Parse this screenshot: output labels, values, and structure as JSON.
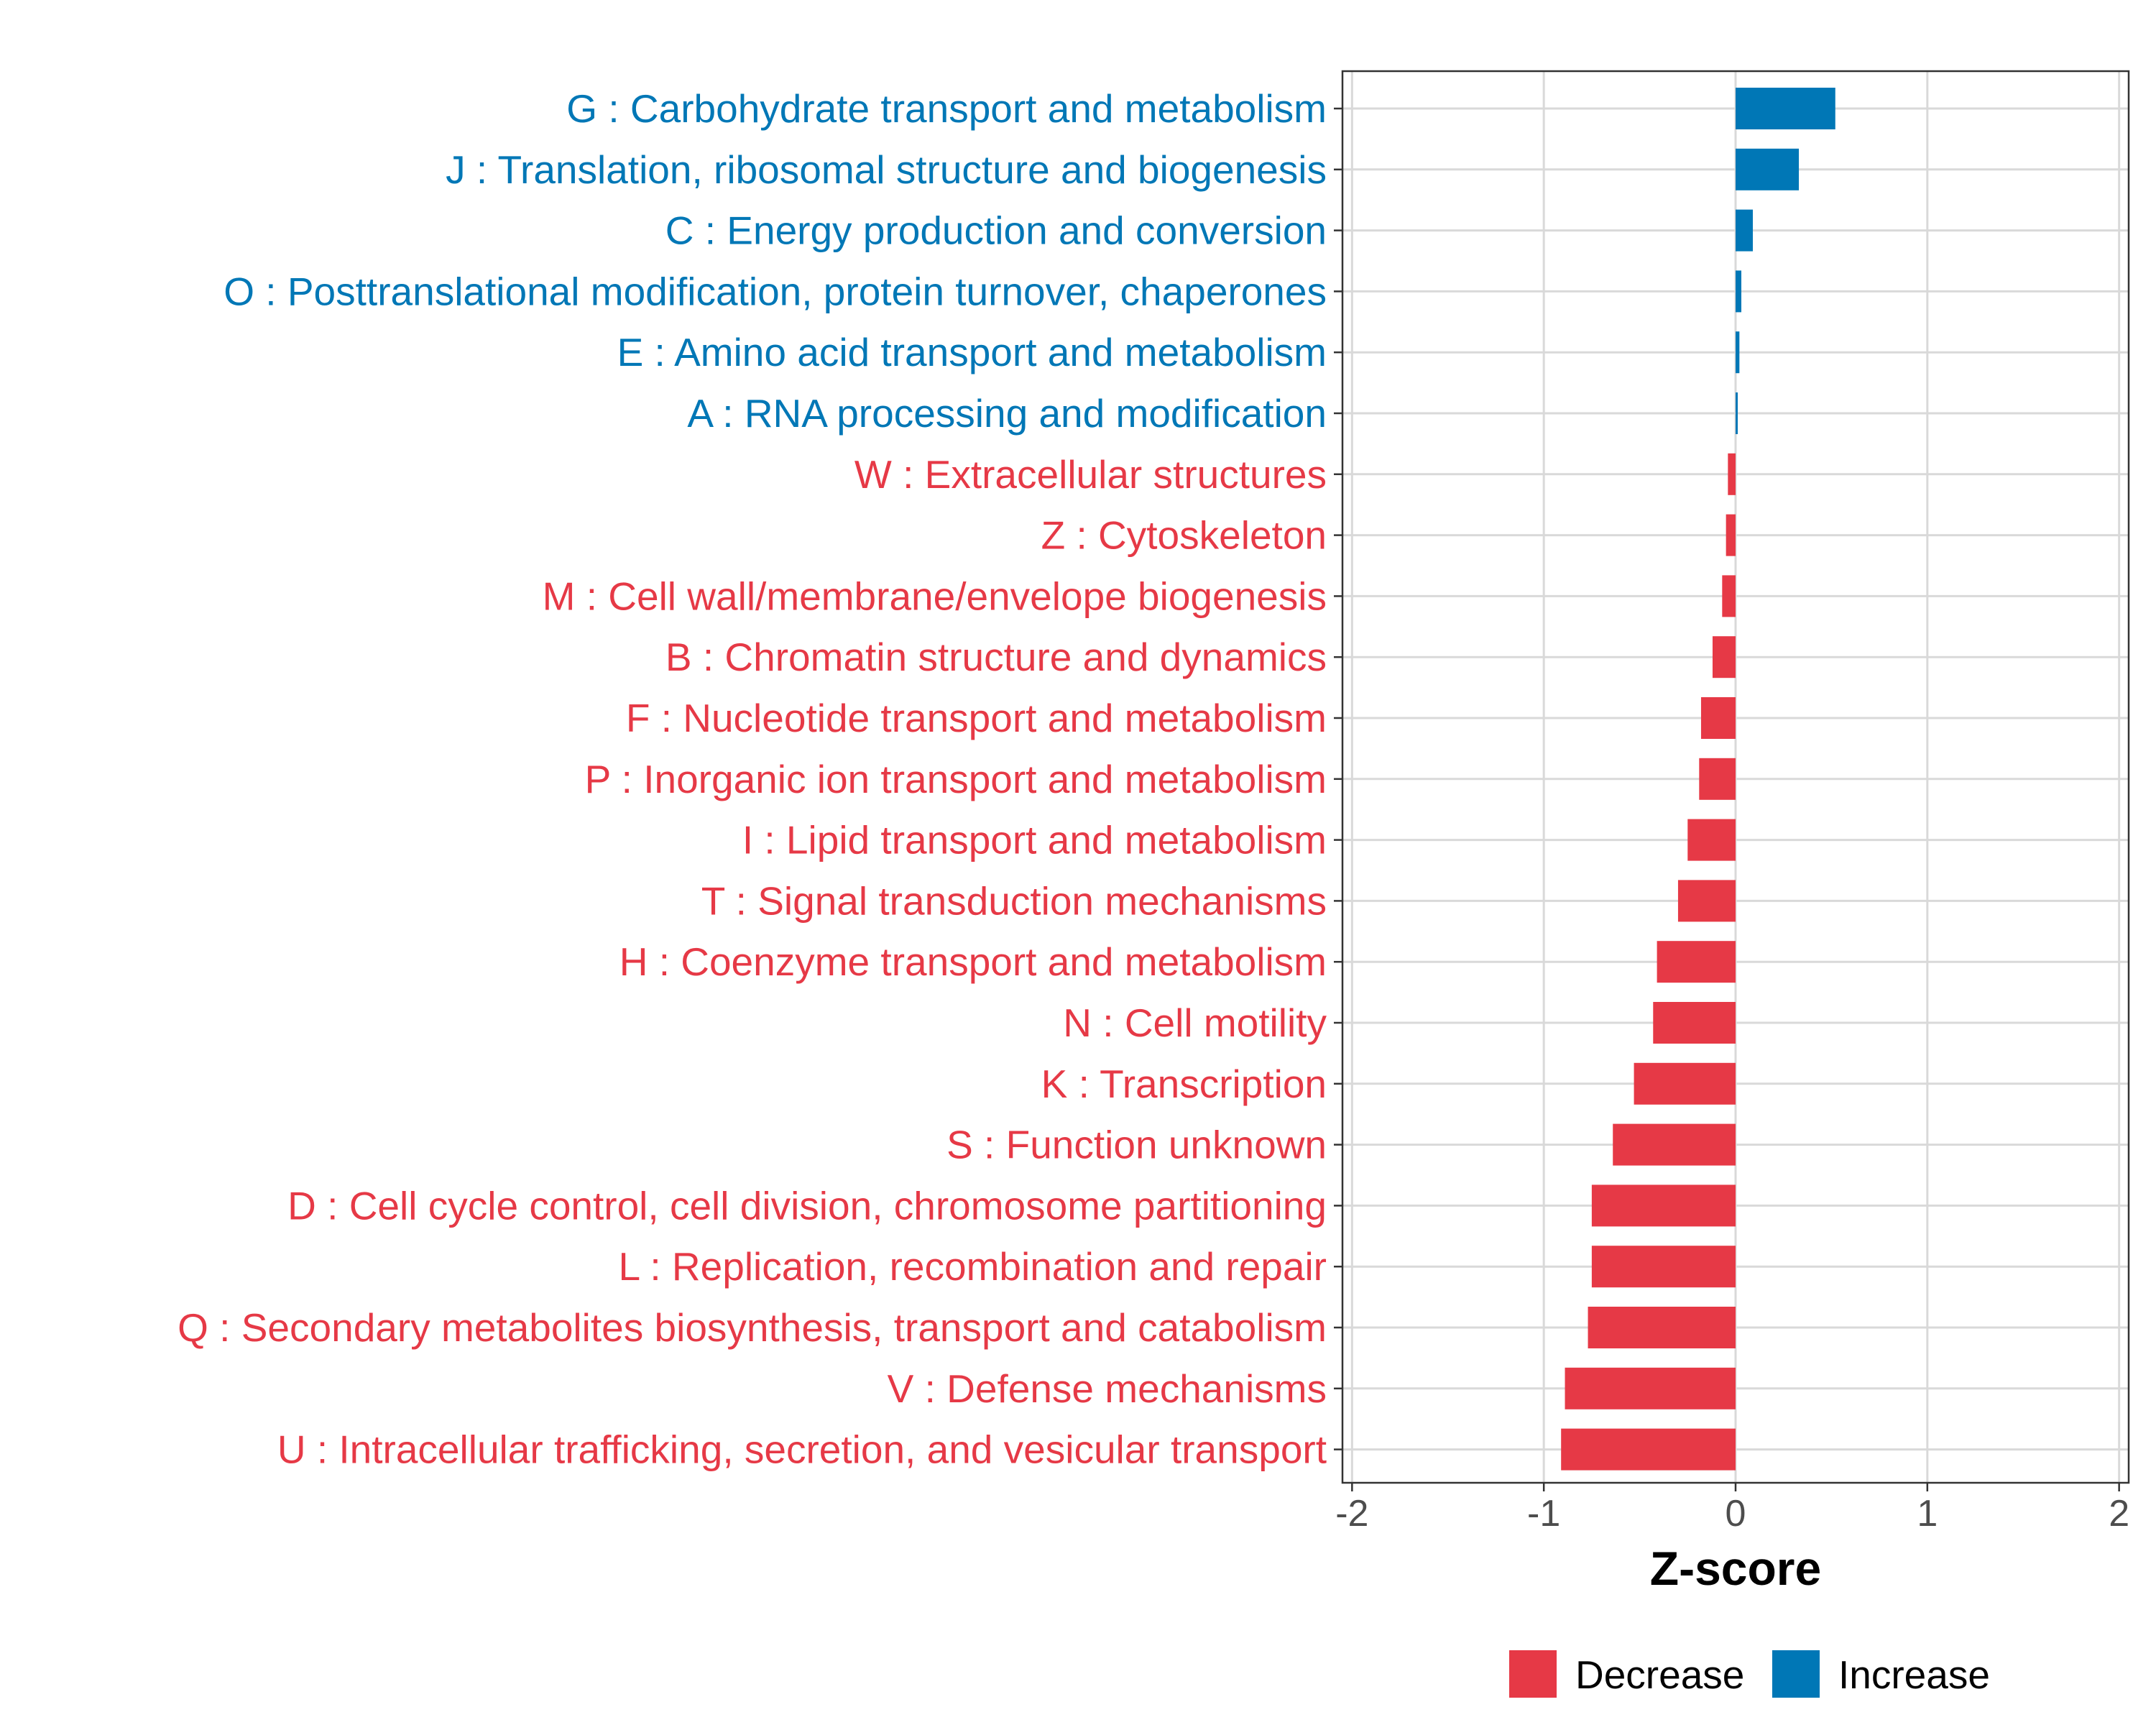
{
  "chart_data": {
    "type": "bar",
    "orientation": "horizontal",
    "xlabel": "Z-score",
    "xlim": [
      -2,
      2
    ],
    "x_ticks": [
      "-2",
      "-1",
      "0",
      "1",
      "2"
    ],
    "x_tick_values": [
      -2,
      -1,
      0,
      1,
      2
    ],
    "grid": true,
    "legend_position": "bottom",
    "legend": [
      {
        "label": "Decrease",
        "color": "#e63946"
      },
      {
        "label": "Increase",
        "color": "#0077b6"
      }
    ],
    "categories": [
      "G : Carbohydrate transport and metabolism",
      "J : Translation, ribosomal structure and biogenesis",
      "C : Energy production and conversion",
      "O : Posttranslational modification, protein turnover, chaperones",
      "E : Amino acid transport and metabolism",
      "A : RNA processing and modification",
      "W : Extracellular structures",
      "Z : Cytoskeleton",
      "M : Cell wall/membrane/envelope biogenesis",
      "B : Chromatin structure and dynamics",
      "F : Nucleotide transport and metabolism",
      "P : Inorganic ion transport and metabolism",
      "I : Lipid transport and metabolism",
      "T : Signal transduction mechanisms",
      "H : Coenzyme transport and metabolism",
      "N : Cell motility",
      "K : Transcription",
      "S : Function unknown",
      "D : Cell cycle control, cell division, chromosome partitioning",
      "L : Replication, recombination and repair",
      "Q : Secondary metabolites biosynthesis, transport and catabolism",
      "V : Defense mechanisms",
      "U : Intracellular trafficking, secretion, and vesicular transport"
    ],
    "values": [
      0.52,
      0.33,
      0.09,
      0.03,
      0.02,
      0.01,
      -0.04,
      -0.05,
      -0.07,
      -0.12,
      -0.18,
      -0.19,
      -0.25,
      -0.3,
      -0.41,
      -0.43,
      -0.53,
      -0.64,
      -0.75,
      -0.75,
      -0.77,
      -0.89,
      -0.91
    ],
    "colors": {
      "increase": "#0077b6",
      "decrease": "#e63946",
      "grid": "#d9d9d9",
      "panel_border": "#333333",
      "tick_text": "#4d4d4d"
    }
  }
}
